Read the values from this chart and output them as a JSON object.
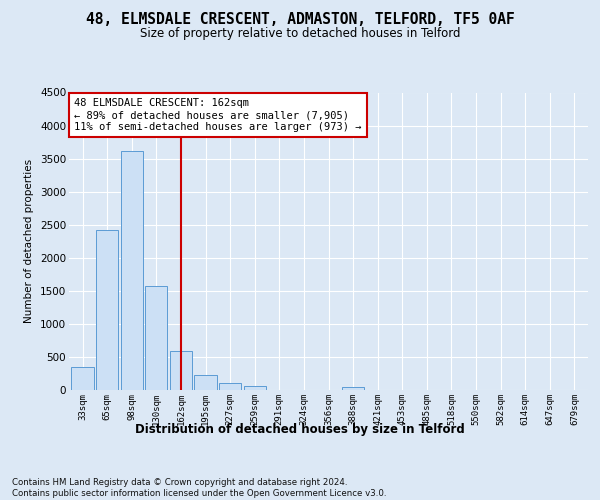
{
  "title": "48, ELMSDALE CRESCENT, ADMASTON, TELFORD, TF5 0AF",
  "subtitle": "Size of property relative to detached houses in Telford",
  "xlabel": "Distribution of detached houses by size in Telford",
  "ylabel": "Number of detached properties",
  "categories": [
    "33sqm",
    "65sqm",
    "98sqm",
    "130sqm",
    "162sqm",
    "195sqm",
    "227sqm",
    "259sqm",
    "291sqm",
    "324sqm",
    "356sqm",
    "388sqm",
    "421sqm",
    "453sqm",
    "485sqm",
    "518sqm",
    "550sqm",
    "582sqm",
    "614sqm",
    "647sqm",
    "679sqm"
  ],
  "values": [
    350,
    2420,
    3620,
    1580,
    590,
    220,
    100,
    60,
    0,
    0,
    0,
    50,
    0,
    0,
    0,
    0,
    0,
    0,
    0,
    0,
    0
  ],
  "bar_color": "#cce0f5",
  "bar_edge_color": "#5b9bd5",
  "vline_x": 4,
  "vline_color": "#cc0000",
  "annotation_text": "48 ELMSDALE CRESCENT: 162sqm\n← 89% of detached houses are smaller (7,905)\n11% of semi-detached houses are larger (973) →",
  "annotation_box_color": "#ffffff",
  "annotation_box_edge": "#cc0000",
  "ylim": [
    0,
    4500
  ],
  "yticks": [
    0,
    500,
    1000,
    1500,
    2000,
    2500,
    3000,
    3500,
    4000,
    4500
  ],
  "footer": "Contains HM Land Registry data © Crown copyright and database right 2024.\nContains public sector information licensed under the Open Government Licence v3.0.",
  "bg_color": "#dce8f5",
  "plot_bg_color": "#dce8f5"
}
